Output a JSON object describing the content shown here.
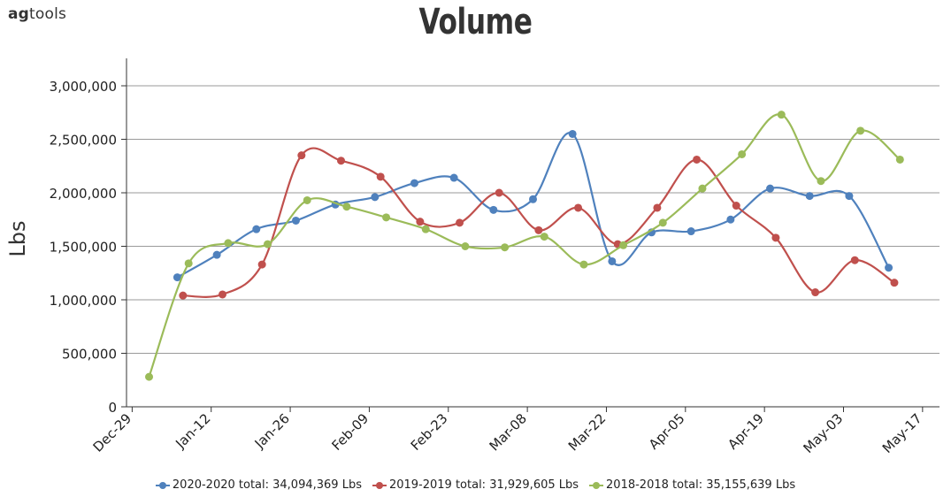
{
  "brand": {
    "prefix": "ag",
    "suffix": "tools"
  },
  "chart_data": {
    "type": "line",
    "title": "Volume",
    "ylabel": "Lbs",
    "xlabel": "",
    "ylim": [
      0,
      3000000
    ],
    "yticks": [
      "0",
      "500,000",
      "1,000,000",
      "1,500,000",
      "2,000,000",
      "2,500,000",
      "3,000,000"
    ],
    "ytick_values": [
      0,
      500000,
      1000000,
      1500000,
      2000000,
      2500000,
      3000000
    ],
    "xrange": [
      "2019-12-28",
      "2020-05-20"
    ],
    "xticks": [
      {
        "label": "Dec-29",
        "date": "2019-12-29"
      },
      {
        "label": "Jan-12",
        "date": "2020-01-12"
      },
      {
        "label": "Jan-26",
        "date": "2020-01-26"
      },
      {
        "label": "Feb-09",
        "date": "2020-02-09"
      },
      {
        "label": "Feb-23",
        "date": "2020-02-23"
      },
      {
        "label": "Mar-08",
        "date": "2020-03-08"
      },
      {
        "label": "Mar-22",
        "date": "2020-03-22"
      },
      {
        "label": "Apr-05",
        "date": "2020-04-05"
      },
      {
        "label": "Apr-19",
        "date": "2020-04-19"
      },
      {
        "label": "May-03",
        "date": "2020-05-03"
      },
      {
        "label": "May-17",
        "date": "2020-05-17"
      }
    ],
    "grid": true,
    "legend_position": "bottom",
    "series": [
      {
        "name": "2020-2020 total: 34,094,369 Lbs",
        "color": "#4f81bd",
        "points": [
          {
            "x": "2020-01-06",
            "y": 1210000
          },
          {
            "x": "2020-01-13",
            "y": 1420000
          },
          {
            "x": "2020-01-20",
            "y": 1660000
          },
          {
            "x": "2020-01-27",
            "y": 1740000
          },
          {
            "x": "2020-02-03",
            "y": 1890000
          },
          {
            "x": "2020-02-10",
            "y": 1960000
          },
          {
            "x": "2020-02-17",
            "y": 2090000
          },
          {
            "x": "2020-02-24",
            "y": 2140000
          },
          {
            "x": "2020-03-02",
            "y": 1840000
          },
          {
            "x": "2020-03-09",
            "y": 1940000
          },
          {
            "x": "2020-03-16",
            "y": 2550000
          },
          {
            "x": "2020-03-23",
            "y": 1360000
          },
          {
            "x": "2020-03-30",
            "y": 1630000
          },
          {
            "x": "2020-04-06",
            "y": 1640000
          },
          {
            "x": "2020-04-13",
            "y": 1750000
          },
          {
            "x": "2020-04-20",
            "y": 2040000
          },
          {
            "x": "2020-04-27",
            "y": 1970000
          },
          {
            "x": "2020-05-04",
            "y": 1970000
          },
          {
            "x": "2020-05-11",
            "y": 1300000
          }
        ]
      },
      {
        "name": "2019-2019 total: 31,929,605 Lbs",
        "color": "#c0504d",
        "points": [
          {
            "x": "2020-01-07",
            "y": 1040000
          },
          {
            "x": "2020-01-14",
            "y": 1050000
          },
          {
            "x": "2020-01-21",
            "y": 1330000
          },
          {
            "x": "2020-01-28",
            "y": 2350000
          },
          {
            "x": "2020-02-04",
            "y": 2300000
          },
          {
            "x": "2020-02-11",
            "y": 2150000
          },
          {
            "x": "2020-02-18",
            "y": 1730000
          },
          {
            "x": "2020-02-25",
            "y": 1720000
          },
          {
            "x": "2020-03-03",
            "y": 2000000
          },
          {
            "x": "2020-03-10",
            "y": 1650000
          },
          {
            "x": "2020-03-17",
            "y": 1860000
          },
          {
            "x": "2020-03-24",
            "y": 1520000
          },
          {
            "x": "2020-03-31",
            "y": 1860000
          },
          {
            "x": "2020-04-07",
            "y": 2310000
          },
          {
            "x": "2020-04-14",
            "y": 1880000
          },
          {
            "x": "2020-04-21",
            "y": 1580000
          },
          {
            "x": "2020-04-28",
            "y": 1070000
          },
          {
            "x": "2020-05-05",
            "y": 1370000
          },
          {
            "x": "2020-05-12",
            "y": 1160000
          }
        ]
      },
      {
        "name": "2018-2018 total: 35,155,639 Lbs",
        "color": "#9bbb59",
        "points": [
          {
            "x": "2020-01-01",
            "y": 280000
          },
          {
            "x": "2020-01-08",
            "y": 1340000
          },
          {
            "x": "2020-01-15",
            "y": 1530000
          },
          {
            "x": "2020-01-22",
            "y": 1520000
          },
          {
            "x": "2020-01-29",
            "y": 1930000
          },
          {
            "x": "2020-02-05",
            "y": 1870000
          },
          {
            "x": "2020-02-12",
            "y": 1770000
          },
          {
            "x": "2020-02-19",
            "y": 1660000
          },
          {
            "x": "2020-02-26",
            "y": 1500000
          },
          {
            "x": "2020-03-04",
            "y": 1490000
          },
          {
            "x": "2020-03-11",
            "y": 1590000
          },
          {
            "x": "2020-03-18",
            "y": 1330000
          },
          {
            "x": "2020-03-25",
            "y": 1510000
          },
          {
            "x": "2020-04-01",
            "y": 1720000
          },
          {
            "x": "2020-04-08",
            "y": 2040000
          },
          {
            "x": "2020-04-15",
            "y": 2360000
          },
          {
            "x": "2020-04-22",
            "y": 2730000
          },
          {
            "x": "2020-04-29",
            "y": 2110000
          },
          {
            "x": "2020-05-06",
            "y": 2580000
          },
          {
            "x": "2020-05-13",
            "y": 2310000
          }
        ]
      }
    ]
  }
}
